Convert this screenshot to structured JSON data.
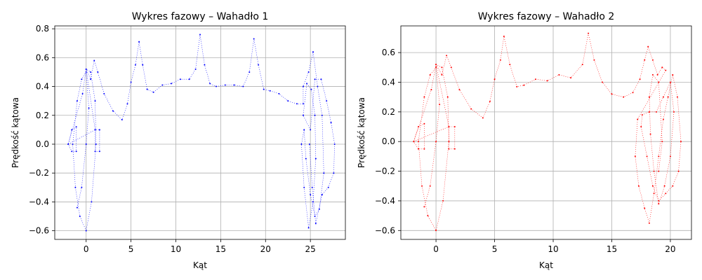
{
  "figure": {
    "background": "#ffffff"
  },
  "chart_data": [
    {
      "type": "scatter",
      "title": "Wykres fazowy – Wahadło 1",
      "xlabel": "Kąt",
      "ylabel": "Prędkość kątowa",
      "xlim": [
        -3.5,
        28.9
      ],
      "ylim": [
        -0.66,
        0.82
      ],
      "xticks": [
        0,
        5,
        10,
        15,
        20,
        25
      ],
      "yticks": [
        -0.6,
        -0.4,
        -0.2,
        0.0,
        0.2,
        0.4,
        0.6,
        0.8
      ],
      "ytick_labels": [
        "−0.6",
        "−0.4",
        "−0.2",
        "0.0",
        "0.2",
        "0.4",
        "0.6",
        "0.8"
      ],
      "grid": true,
      "series": [
        {
          "color": "#0000ff",
          "marker_size": 1,
          "points": [
            [
              -1.0,
              -0.44
            ],
            [
              -0.5,
              -0.3
            ],
            [
              0.0,
              0.0
            ],
            [
              0.3,
              0.25
            ],
            [
              0.0,
              0.5
            ],
            [
              -0.5,
              0.45
            ],
            [
              -1.0,
              0.3
            ],
            [
              -1.5,
              0.0
            ],
            [
              -1.2,
              -0.3
            ],
            [
              -0.7,
              -0.5
            ],
            [
              0.0,
              -0.6
            ],
            [
              0.6,
              -0.4
            ],
            [
              1.1,
              0.0
            ],
            [
              1.0,
              0.3
            ],
            [
              0.5,
              0.5
            ],
            [
              0.0,
              0.52
            ],
            [
              -0.4,
              0.35
            ],
            [
              -2.0,
              0.0
            ],
            [
              -1.6,
              0.1
            ],
            [
              -1.1,
              0.12
            ],
            [
              -1.1,
              -0.05
            ],
            [
              -1.6,
              -0.05
            ],
            [
              -2.0,
              0.0
            ],
            [
              1.0,
              0.1
            ],
            [
              1.5,
              0.1
            ],
            [
              1.5,
              -0.05
            ],
            [
              1.0,
              -0.05
            ],
            [
              1.0,
              0.1
            ],
            [
              0.0,
              0.52
            ],
            [
              0.5,
              0.45
            ],
            [
              0.9,
              0.58
            ],
            [
              1.3,
              0.5
            ],
            [
              2.0,
              0.35
            ],
            [
              3.0,
              0.23
            ],
            [
              4.0,
              0.17
            ],
            [
              4.6,
              0.28
            ],
            [
              5.0,
              0.43
            ],
            [
              5.5,
              0.55
            ],
            [
              5.9,
              0.71
            ],
            [
              6.3,
              0.55
            ],
            [
              6.8,
              0.38
            ],
            [
              7.5,
              0.36
            ],
            [
              8.5,
              0.41
            ],
            [
              9.5,
              0.42
            ],
            [
              10.5,
              0.45
            ],
            [
              11.5,
              0.45
            ],
            [
              12.2,
              0.52
            ],
            [
              12.7,
              0.76
            ],
            [
              13.2,
              0.55
            ],
            [
              13.8,
              0.42
            ],
            [
              14.5,
              0.4
            ],
            [
              15.5,
              0.41
            ],
            [
              16.5,
              0.41
            ],
            [
              17.5,
              0.4
            ],
            [
              18.2,
              0.5
            ],
            [
              18.7,
              0.73
            ],
            [
              19.2,
              0.55
            ],
            [
              19.8,
              0.38
            ],
            [
              20.5,
              0.37
            ],
            [
              21.5,
              0.35
            ],
            [
              22.5,
              0.3
            ],
            [
              23.5,
              0.28
            ],
            [
              24.2,
              0.28
            ],
            [
              24.2,
              0.4
            ],
            [
              24.8,
              0.5
            ],
            [
              25.3,
              0.64
            ],
            [
              25.8,
              0.4
            ],
            [
              26.3,
              0.2
            ],
            [
              26.5,
              -0.2
            ],
            [
              26.0,
              -0.45
            ],
            [
              25.5,
              -0.5
            ],
            [
              25.0,
              -0.35
            ],
            [
              24.5,
              -0.1
            ],
            [
              24.3,
              0.1
            ],
            [
              24.0,
              0.0
            ],
            [
              24.3,
              -0.3
            ],
            [
              24.8,
              -0.58
            ],
            [
              25.3,
              -0.4
            ],
            [
              25.6,
              -0.1
            ],
            [
              25.5,
              0.2
            ],
            [
              25.1,
              0.38
            ],
            [
              24.6,
              0.42
            ],
            [
              24.2,
              0.2
            ],
            [
              25.0,
              0.1
            ],
            [
              25.5,
              0.45
            ],
            [
              26.2,
              0.45
            ],
            [
              26.8,
              0.3
            ],
            [
              27.3,
              0.15
            ],
            [
              27.7,
              0.0
            ],
            [
              27.6,
              -0.2
            ],
            [
              27.0,
              -0.3
            ],
            [
              26.3,
              -0.35
            ],
            [
              25.6,
              -0.55
            ],
            [
              25.2,
              -0.3
            ],
            [
              24.9,
              0.0
            ]
          ]
        }
      ]
    },
    {
      "type": "scatter",
      "title": "Wykres fazowy – Wahadło 2",
      "xlabel": "Kąt",
      "ylabel": "Prędkość kątowa",
      "xlim": [
        -3.0,
        21.8
      ],
      "ylim": [
        -0.66,
        0.78
      ],
      "xticks": [
        0,
        5,
        10,
        15,
        20
      ],
      "yticks": [
        -0.6,
        -0.4,
        -0.2,
        0.0,
        0.2,
        0.4,
        0.6
      ],
      "ytick_labels": [
        "−0.6",
        "−0.4",
        "−0.2",
        "0.0",
        "0.2",
        "0.4",
        "0.6"
      ],
      "grid": true,
      "series": [
        {
          "color": "#ff0000",
          "marker_size": 1,
          "points": [
            [
              -1.0,
              -0.44
            ],
            [
              -0.5,
              -0.3
            ],
            [
              0.0,
              0.0
            ],
            [
              0.3,
              0.25
            ],
            [
              0.0,
              0.5
            ],
            [
              -0.5,
              0.45
            ],
            [
              -1.0,
              0.3
            ],
            [
              -1.5,
              0.0
            ],
            [
              -1.2,
              -0.3
            ],
            [
              -0.7,
              -0.5
            ],
            [
              0.0,
              -0.6
            ],
            [
              0.6,
              -0.4
            ],
            [
              1.1,
              0.0
            ],
            [
              1.0,
              0.3
            ],
            [
              0.5,
              0.5
            ],
            [
              0.0,
              0.52
            ],
            [
              -0.4,
              0.35
            ],
            [
              -1.9,
              0.0
            ],
            [
              -1.5,
              0.1
            ],
            [
              -1.0,
              0.12
            ],
            [
              -1.0,
              -0.05
            ],
            [
              -1.5,
              -0.05
            ],
            [
              -1.9,
              0.0
            ],
            [
              1.1,
              0.1
            ],
            [
              1.6,
              0.1
            ],
            [
              1.6,
              -0.05
            ],
            [
              1.1,
              -0.05
            ],
            [
              1.1,
              0.1
            ],
            [
              0.0,
              0.52
            ],
            [
              0.5,
              0.45
            ],
            [
              0.9,
              0.58
            ],
            [
              1.3,
              0.5
            ],
            [
              2.0,
              0.35
            ],
            [
              3.0,
              0.22
            ],
            [
              4.0,
              0.16
            ],
            [
              4.6,
              0.27
            ],
            [
              5.0,
              0.42
            ],
            [
              5.5,
              0.55
            ],
            [
              5.8,
              0.71
            ],
            [
              6.3,
              0.52
            ],
            [
              6.9,
              0.37
            ],
            [
              7.5,
              0.38
            ],
            [
              8.5,
              0.42
            ],
            [
              9.5,
              0.41
            ],
            [
              10.5,
              0.45
            ],
            [
              11.5,
              0.43
            ],
            [
              12.5,
              0.52
            ],
            [
              13.0,
              0.73
            ],
            [
              13.5,
              0.55
            ],
            [
              14.2,
              0.4
            ],
            [
              15.0,
              0.32
            ],
            [
              16.0,
              0.3
            ],
            [
              16.8,
              0.33
            ],
            [
              17.4,
              0.42
            ],
            [
              17.8,
              0.55
            ],
            [
              18.1,
              0.64
            ],
            [
              18.5,
              0.55
            ],
            [
              18.9,
              0.45
            ],
            [
              19.3,
              0.5
            ],
            [
              19.6,
              0.48
            ],
            [
              17.2,
              0.15
            ],
            [
              17.0,
              -0.1
            ],
            [
              17.3,
              -0.3
            ],
            [
              17.8,
              -0.45
            ],
            [
              18.2,
              -0.55
            ],
            [
              18.6,
              -0.35
            ],
            [
              19.0,
              -0.1
            ],
            [
              19.4,
              0.15
            ],
            [
              19.8,
              0.3
            ],
            [
              20.2,
              0.45
            ],
            [
              20.6,
              0.3
            ],
            [
              20.9,
              0.0
            ],
            [
              20.7,
              -0.2
            ],
            [
              20.2,
              -0.3
            ],
            [
              19.6,
              -0.35
            ],
            [
              19.0,
              -0.4
            ],
            [
              18.5,
              -0.3
            ],
            [
              18.0,
              -0.1
            ],
            [
              17.5,
              0.1
            ],
            [
              17.6,
              0.18
            ],
            [
              18.2,
              0.2
            ],
            [
              18.8,
              0.2
            ],
            [
              19.4,
              0.3
            ],
            [
              20.0,
              0.4
            ],
            [
              20.3,
              0.2
            ],
            [
              20.0,
              -0.1
            ],
            [
              19.5,
              -0.3
            ],
            [
              19.0,
              -0.42
            ],
            [
              18.6,
              -0.2
            ],
            [
              18.3,
              0.05
            ],
            [
              18.2,
              0.3
            ],
            [
              18.5,
              0.45
            ],
            [
              19.0,
              0.4
            ],
            [
              19.3,
              0.0
            ],
            [
              19.0,
              -0.2
            ]
          ]
        }
      ]
    }
  ]
}
